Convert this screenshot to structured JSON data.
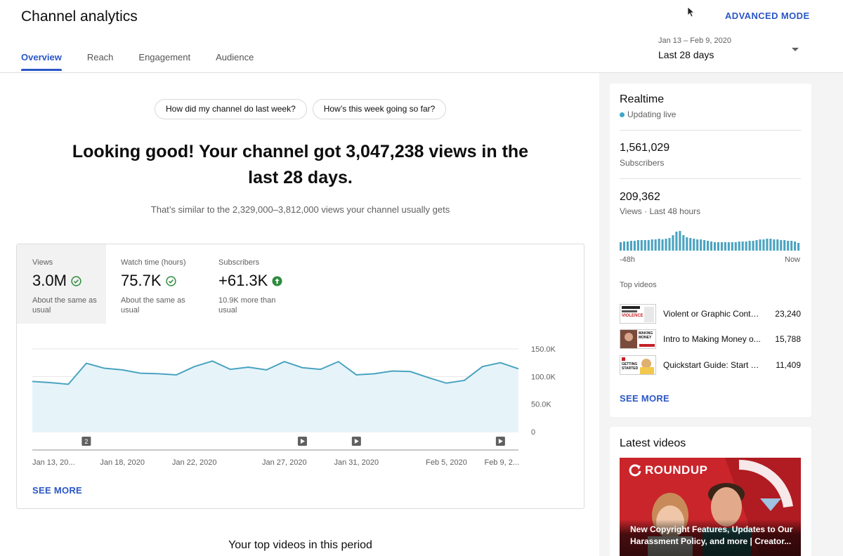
{
  "header": {
    "title": "Channel analytics",
    "advanced_mode": "ADVANCED MODE",
    "tabs": [
      {
        "label": "Overview",
        "active": true
      },
      {
        "label": "Reach",
        "active": false
      },
      {
        "label": "Engagement",
        "active": false
      },
      {
        "label": "Audience",
        "active": false
      }
    ],
    "date_range": "Jan 13 – Feb 9, 2020",
    "date_label": "Last 28 days"
  },
  "main": {
    "questions": [
      "How did my channel do last week?",
      "How’s this week going so far?"
    ],
    "headline_line1": "Looking good! Your channel got 3,047,238 views in the",
    "headline_line2": "last 28 days.",
    "subhead": "That’s similar to the 2,329,000–3,812,000 views your channel usually gets",
    "metrics": [
      {
        "label": "Views",
        "value": "3.0M",
        "note": "About the same as usual",
        "status": "ok"
      },
      {
        "label": "Watch time (hours)",
        "value": "75.7K",
        "note": "About the same as usual",
        "status": "ok"
      },
      {
        "label": "Subscribers",
        "value": "+61.3K",
        "note": "10.9K more than usual",
        "status": "up"
      }
    ],
    "see_more": "SEE MORE",
    "top_videos_title": "Your top videos in this period"
  },
  "chart_data": {
    "type": "area",
    "series": [
      {
        "values": [
          91,
          89,
          86,
          124,
          115,
          112,
          106,
          105,
          103,
          118,
          128,
          113,
          117,
          112,
          127,
          116,
          113,
          127,
          103,
          105,
          110,
          109,
          98,
          88,
          93,
          118,
          125,
          114
        ]
      }
    ],
    "x_tick_labels": [
      "Jan 13, 20...",
      "Jan 18, 2020",
      "Jan 22, 2020",
      "Jan 27, 2020",
      "Jan 31, 2020",
      "Feb 5, 2020",
      "Feb 9, 2..."
    ],
    "x_tick_index": [
      0,
      5,
      9,
      14,
      18,
      23,
      27
    ],
    "y_ticks": [
      "150.0K",
      "100.0K",
      "50.0K",
      "0"
    ],
    "ylim": [
      0,
      150
    ],
    "grid": true,
    "markers": [
      {
        "index": 3,
        "kind": "count",
        "label": "2"
      },
      {
        "index": 15,
        "kind": "play"
      },
      {
        "index": 18,
        "kind": "play"
      },
      {
        "index": 26,
        "kind": "play"
      }
    ],
    "line_color": "#4aa3c0",
    "fill_color": "#e6f4fa"
  },
  "realtime": {
    "title": "Realtime",
    "live_label": "Updating live",
    "subscribers_value": "1,561,029",
    "subscribers_label": "Subscribers",
    "views_value": "209,362",
    "views_label": "Views · Last 48 hours",
    "spark_values": [
      12,
      13,
      13,
      14,
      14,
      15,
      15,
      15,
      15,
      16,
      16,
      17,
      16,
      17,
      18,
      22,
      27,
      28,
      22,
      19,
      18,
      17,
      16,
      16,
      15,
      14,
      13,
      12,
      12,
      12,
      12,
      12,
      12,
      12,
      13,
      13,
      13,
      14,
      14,
      15,
      16,
      16,
      17,
      17,
      16,
      16,
      15,
      15,
      14,
      14,
      13,
      11
    ],
    "spark_left": "-48h",
    "spark_right": "Now",
    "top_videos_label": "Top videos",
    "videos": [
      {
        "title": "Violent or Graphic Conte...",
        "views": "23,240",
        "thumb_text": "VIOLENCE"
      },
      {
        "title": "Intro to Making Money o...",
        "views": "15,788",
        "thumb_text": "MAKING MONEY"
      },
      {
        "title": "Quickstart Guide: Start Y...",
        "views": "11,409",
        "thumb_text": "GETTING STARTED"
      }
    ],
    "see_more": "SEE MORE"
  },
  "latest": {
    "title": "Latest videos",
    "brand": "ROUNDUP",
    "caption_line1": "New Copyright Features, Updates to Our",
    "caption_line2": "Harassment Policy, and more | Creator..."
  },
  "colors": {
    "accent": "#2a56c6",
    "chart_line": "#4aa3c0",
    "ok_green": "#2e8b3d",
    "up_green": "#2e8b3d",
    "live_dot": "#3ea6c8",
    "brand_red": "#c62027"
  }
}
